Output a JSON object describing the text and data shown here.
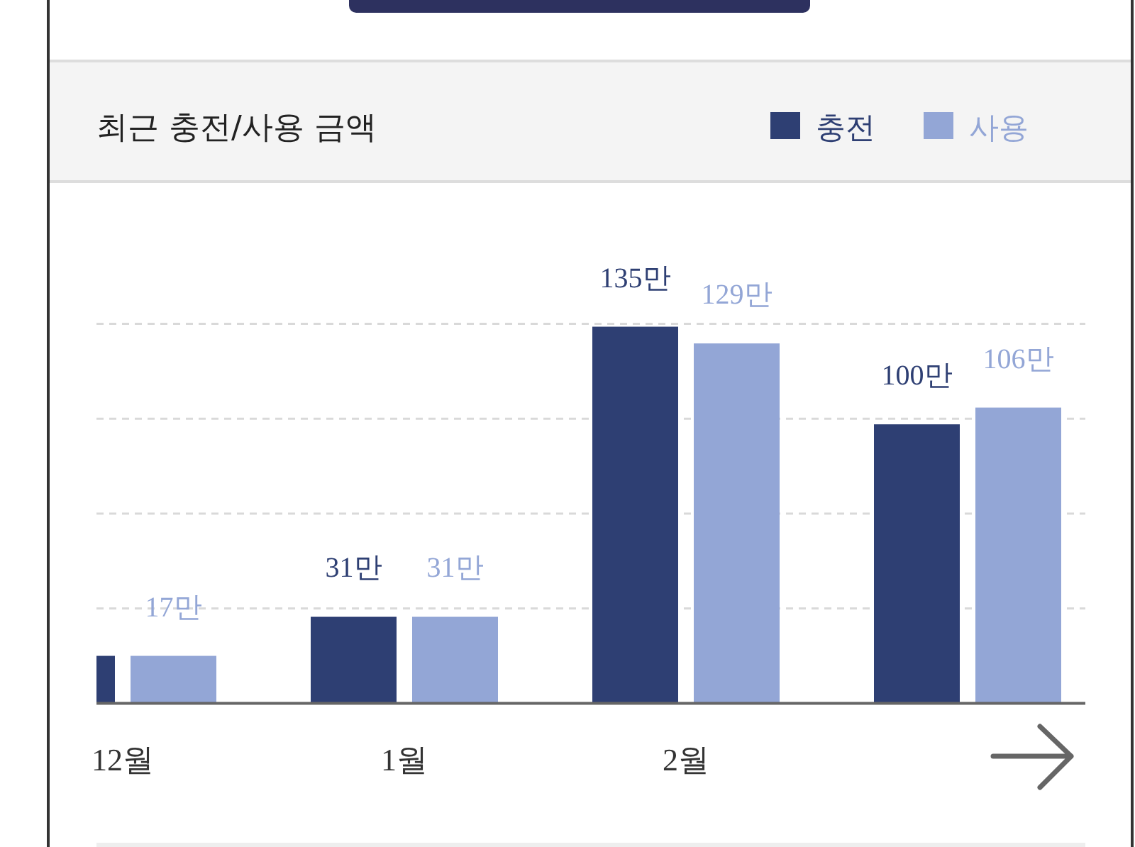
{
  "chart_data": {
    "type": "bar",
    "title": "최근 충전/사용 금액",
    "categories": [
      "12월",
      "1월",
      "2월",
      null
    ],
    "series": [
      {
        "name": "충전",
        "color": "#2e3f73",
        "values": [
          17,
          31,
          135,
          100
        ],
        "value_labels": [
          null,
          "31만",
          "135만",
          "100만"
        ]
      },
      {
        "name": "사용",
        "color": "#93a6d6",
        "values": [
          17,
          31,
          129,
          106
        ],
        "value_labels": [
          "17만",
          "31만",
          "129만",
          "106만"
        ]
      }
    ],
    "ylim": [
      0,
      136
    ],
    "yticks": [
      {
        "value": 34,
        "label": null
      },
      {
        "value": 68,
        "label": null
      },
      {
        "value": 102,
        "label": null
      },
      {
        "value": 136,
        "label": null
      }
    ],
    "grid": "y",
    "legend": "top right",
    "tick_labels": "x"
  }
}
